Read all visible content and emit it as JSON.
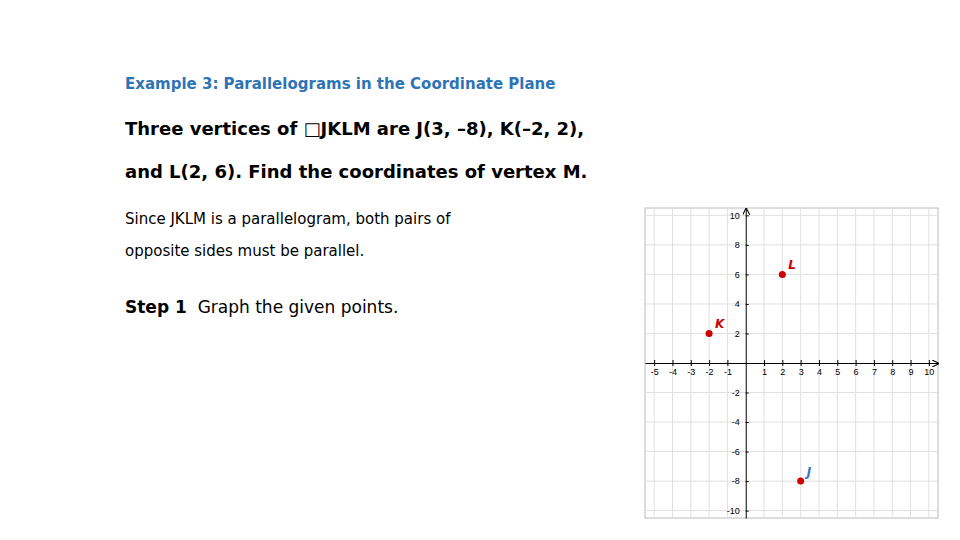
{
  "chart_data": {
    "type": "scatter",
    "title": "Example 3: Parallelograms in the Coordinate Plane",
    "title_color": "#2E74B5",
    "problem": [
      "Three vertices of □JKLM are J(3, –8), K(–2, 2),",
      "and L(2, 6). Find the coordinates of vertex M."
    ],
    "explanation": [
      "Since JKLM is a parallelogram, both pairs of",
      "opposite sides must be parallel."
    ],
    "step": {
      "label": "Step 1",
      "text": "  Graph the given points."
    },
    "x": [
      3,
      -2,
      2
    ],
    "values": [
      -8,
      2,
      6
    ],
    "color": "#CC0000",
    "annotations": [
      {
        "text": "J",
        "x": 3,
        "y": -8,
        "color": "#4472C4"
      },
      {
        "text": "K",
        "x": -2,
        "y": 2,
        "color": "#CC0000"
      },
      {
        "text": "L",
        "x": 2,
        "y": 6,
        "color": "#CC0000"
      }
    ],
    "xlim": [
      -5.5,
      10.5
    ],
    "ylim": [
      -10.5,
      10.5
    ],
    "xticks": [
      -5,
      -4,
      -3,
      -2,
      -1,
      1,
      2,
      3,
      4,
      5,
      6,
      7,
      8,
      9,
      10
    ],
    "yticks": [
      -10,
      -8,
      -6,
      -4,
      -2,
      2,
      4,
      6,
      8,
      10
    ],
    "grid": true
  }
}
